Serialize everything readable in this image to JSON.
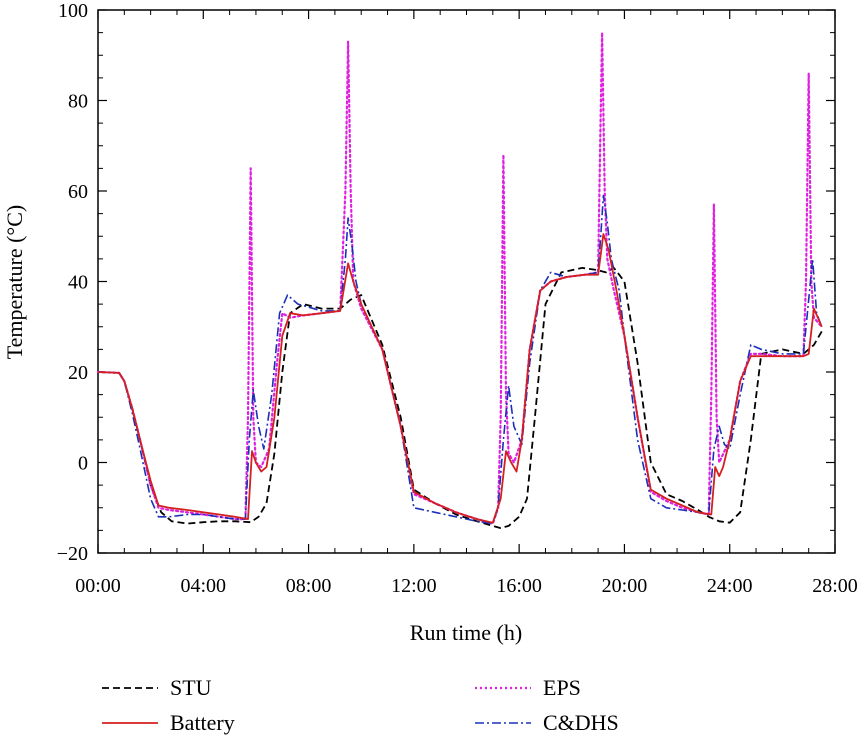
{
  "chart_data": {
    "type": "line",
    "title": "",
    "xlabel": "Run time (h)",
    "ylabel": "Temperature (°C)",
    "xlim": [
      0,
      28
    ],
    "ylim": [
      -20,
      100
    ],
    "x_ticks": [
      0,
      4,
      8,
      12,
      16,
      20,
      24,
      28
    ],
    "x_tick_labels": [
      "00:00",
      "04:00",
      "08:00",
      "12:00",
      "16:00",
      "20:00",
      "24:00",
      "28:00"
    ],
    "y_ticks": [
      -20,
      0,
      20,
      40,
      60,
      80,
      100
    ],
    "y_tick_labels": [
      "−20",
      "0",
      "20",
      "40",
      "60",
      "80",
      "100"
    ],
    "grid": false,
    "legend_position": "bottom",
    "series": [
      {
        "name": "STU",
        "color": "#000000",
        "dash": "dashed",
        "x": [
          0,
          0.8,
          1.0,
          1.3,
          1.6,
          2.0,
          2.4,
          2.8,
          3.4,
          4.0,
          4.6,
          5.2,
          5.8,
          6.1,
          6.4,
          6.7,
          7.0,
          7.3,
          7.8,
          8.5,
          9.2,
          9.6,
          10.0,
          10.8,
          11.5,
          12.0,
          12.8,
          13.6,
          14.4,
          15.0,
          15.3,
          15.6,
          16.0,
          16.3,
          16.6,
          17.0,
          17.6,
          18.4,
          19.0,
          19.3,
          19.6,
          20.0,
          20.5,
          21.0,
          21.6,
          22.2,
          22.8,
          23.2,
          23.6,
          24.0,
          24.4,
          24.8,
          25.2,
          26.0,
          26.8,
          27.2,
          27.5
        ],
        "y": [
          20,
          19.8,
          18,
          12,
          5,
          -5,
          -11,
          -13,
          -13.5,
          -13.2,
          -13,
          -13,
          -13.2,
          -12,
          -9,
          2,
          20,
          33,
          35,
          34,
          34,
          36,
          37,
          26,
          10,
          -6,
          -9,
          -11.5,
          -13,
          -14,
          -14.5,
          -14,
          -12,
          -8,
          10,
          35,
          42,
          43,
          42.5,
          42,
          43,
          40,
          22,
          0,
          -7,
          -8.5,
          -10.5,
          -12,
          -13,
          -13.3,
          -11,
          5,
          24,
          25,
          24,
          26,
          29
        ]
      },
      {
        "name": "Battery",
        "color": "#d42020",
        "dash": "solid",
        "x": [
          0,
          0.8,
          1.0,
          1.3,
          1.6,
          2.0,
          2.3,
          2.7,
          3.4,
          4.0,
          4.6,
          5.2,
          5.7,
          5.85,
          6.0,
          6.2,
          6.4,
          6.7,
          7.0,
          7.3,
          7.8,
          8.5,
          9.2,
          9.5,
          9.7,
          10.0,
          10.8,
          11.5,
          12.0,
          12.8,
          13.6,
          14.4,
          15.0,
          15.3,
          15.5,
          15.7,
          15.9,
          16.1,
          16.4,
          16.8,
          17.2,
          17.8,
          18.5,
          19.0,
          19.2,
          19.4,
          19.7,
          20.0,
          20.5,
          21.0,
          21.6,
          22.2,
          22.8,
          23.3,
          23.45,
          23.6,
          23.75,
          24.0,
          24.4,
          24.8,
          25.2,
          26.0,
          26.8,
          27.0,
          27.2,
          27.5
        ],
        "y": [
          20,
          19.8,
          18,
          12,
          5,
          -4,
          -9.5,
          -10,
          -10.5,
          -11,
          -11.5,
          -12,
          -12.5,
          2.5,
          0,
          -2,
          -1,
          10,
          28,
          33,
          32.5,
          33,
          33.5,
          44,
          40,
          35,
          25,
          8,
          -6.5,
          -9,
          -11,
          -12.5,
          -13.3,
          -8,
          2.5,
          0,
          -2,
          5,
          25,
          38,
          40,
          41,
          41.5,
          41.5,
          50.5,
          47,
          38,
          28,
          10,
          -6,
          -8,
          -9.5,
          -11,
          -11.5,
          -1,
          -3,
          -1,
          5,
          18,
          23.5,
          23.5,
          23.5,
          23.5,
          24,
          34,
          30
        ]
      },
      {
        "name": "EPS",
        "color": "#e020e0",
        "dash": "dotted",
        "x": [
          0,
          0.8,
          1.0,
          1.3,
          1.6,
          2.0,
          2.3,
          2.7,
          3.4,
          4.0,
          4.6,
          5.2,
          5.6,
          5.7,
          5.8,
          5.9,
          6.0,
          6.2,
          6.5,
          6.8,
          7.0,
          7.3,
          7.8,
          8.5,
          9.2,
          9.4,
          9.5,
          9.6,
          9.7,
          10.0,
          10.8,
          11.5,
          12.0,
          12.8,
          13.6,
          14.4,
          15.0,
          15.2,
          15.3,
          15.4,
          15.5,
          15.6,
          15.8,
          16.1,
          16.4,
          16.8,
          17.2,
          17.8,
          18.5,
          19.0,
          19.05,
          19.15,
          19.25,
          19.35,
          19.6,
          20.0,
          20.5,
          21.0,
          21.6,
          22.2,
          22.8,
          23.2,
          23.3,
          23.4,
          23.5,
          23.6,
          24.0,
          24.4,
          24.8,
          25.2,
          26.0,
          26.8,
          26.9,
          27.0,
          27.1,
          27.2,
          27.5
        ],
        "y": [
          20,
          19.8,
          18,
          12,
          5,
          -5,
          -10,
          -10.5,
          -11,
          -11.5,
          -12,
          -12.5,
          -12.5,
          10,
          65,
          10,
          0,
          -1,
          3,
          22,
          33,
          32,
          32.5,
          33,
          33.5,
          60,
          93,
          60,
          40,
          34,
          25,
          8,
          -7,
          -9,
          -11,
          -12.5,
          -13.5,
          -10,
          10,
          68,
          15,
          2,
          0,
          5,
          25,
          38,
          40,
          41,
          41.5,
          42,
          60,
          95,
          60,
          45,
          38,
          28,
          10,
          -6.5,
          -8.5,
          -10,
          -11,
          -11.5,
          15,
          57,
          10,
          0,
          5,
          18,
          24,
          24,
          23.5,
          23.5,
          40,
          86,
          40,
          32,
          30
        ]
      },
      {
        "name": "C&DHS",
        "color": "#1a30b8",
        "dash": "dashdot",
        "x": [
          0,
          0.8,
          1.0,
          1.3,
          1.6,
          2.0,
          2.3,
          2.7,
          3.4,
          4.0,
          4.6,
          5.2,
          5.6,
          5.75,
          5.9,
          6.1,
          6.3,
          6.6,
          6.9,
          7.2,
          7.6,
          8.5,
          9.2,
          9.4,
          9.5,
          9.65,
          9.8,
          10.0,
          10.8,
          11.5,
          12.0,
          12.8,
          13.6,
          14.4,
          15.0,
          15.2,
          15.4,
          15.6,
          15.8,
          16.1,
          16.4,
          16.8,
          17.2,
          17.8,
          18.5,
          19.0,
          19.1,
          19.2,
          19.35,
          19.5,
          19.8,
          20.0,
          20.5,
          21.0,
          21.6,
          22.2,
          22.8,
          23.2,
          23.4,
          23.6,
          23.8,
          24.0,
          24.4,
          24.8,
          25.2,
          26.0,
          26.8,
          27.0,
          27.15,
          27.3,
          27.5
        ],
        "y": [
          20,
          19.8,
          18,
          11,
          3,
          -8,
          -12,
          -12,
          -11.5,
          -11.5,
          -12,
          -12.5,
          -12.5,
          5,
          16,
          8,
          3,
          15,
          33,
          37,
          35,
          33.5,
          33.5,
          45,
          54,
          48,
          40,
          35,
          25,
          8,
          -10,
          -11,
          -12,
          -13,
          -13.5,
          -10,
          5,
          17,
          8,
          4,
          22,
          38,
          42,
          41,
          41.5,
          42,
          50,
          59,
          53,
          45,
          38,
          28,
          5,
          -8,
          -10,
          -10.5,
          -11,
          -11.5,
          3,
          8,
          4,
          3,
          15,
          26,
          25,
          24,
          24,
          36,
          45,
          33,
          30
        ]
      }
    ]
  }
}
